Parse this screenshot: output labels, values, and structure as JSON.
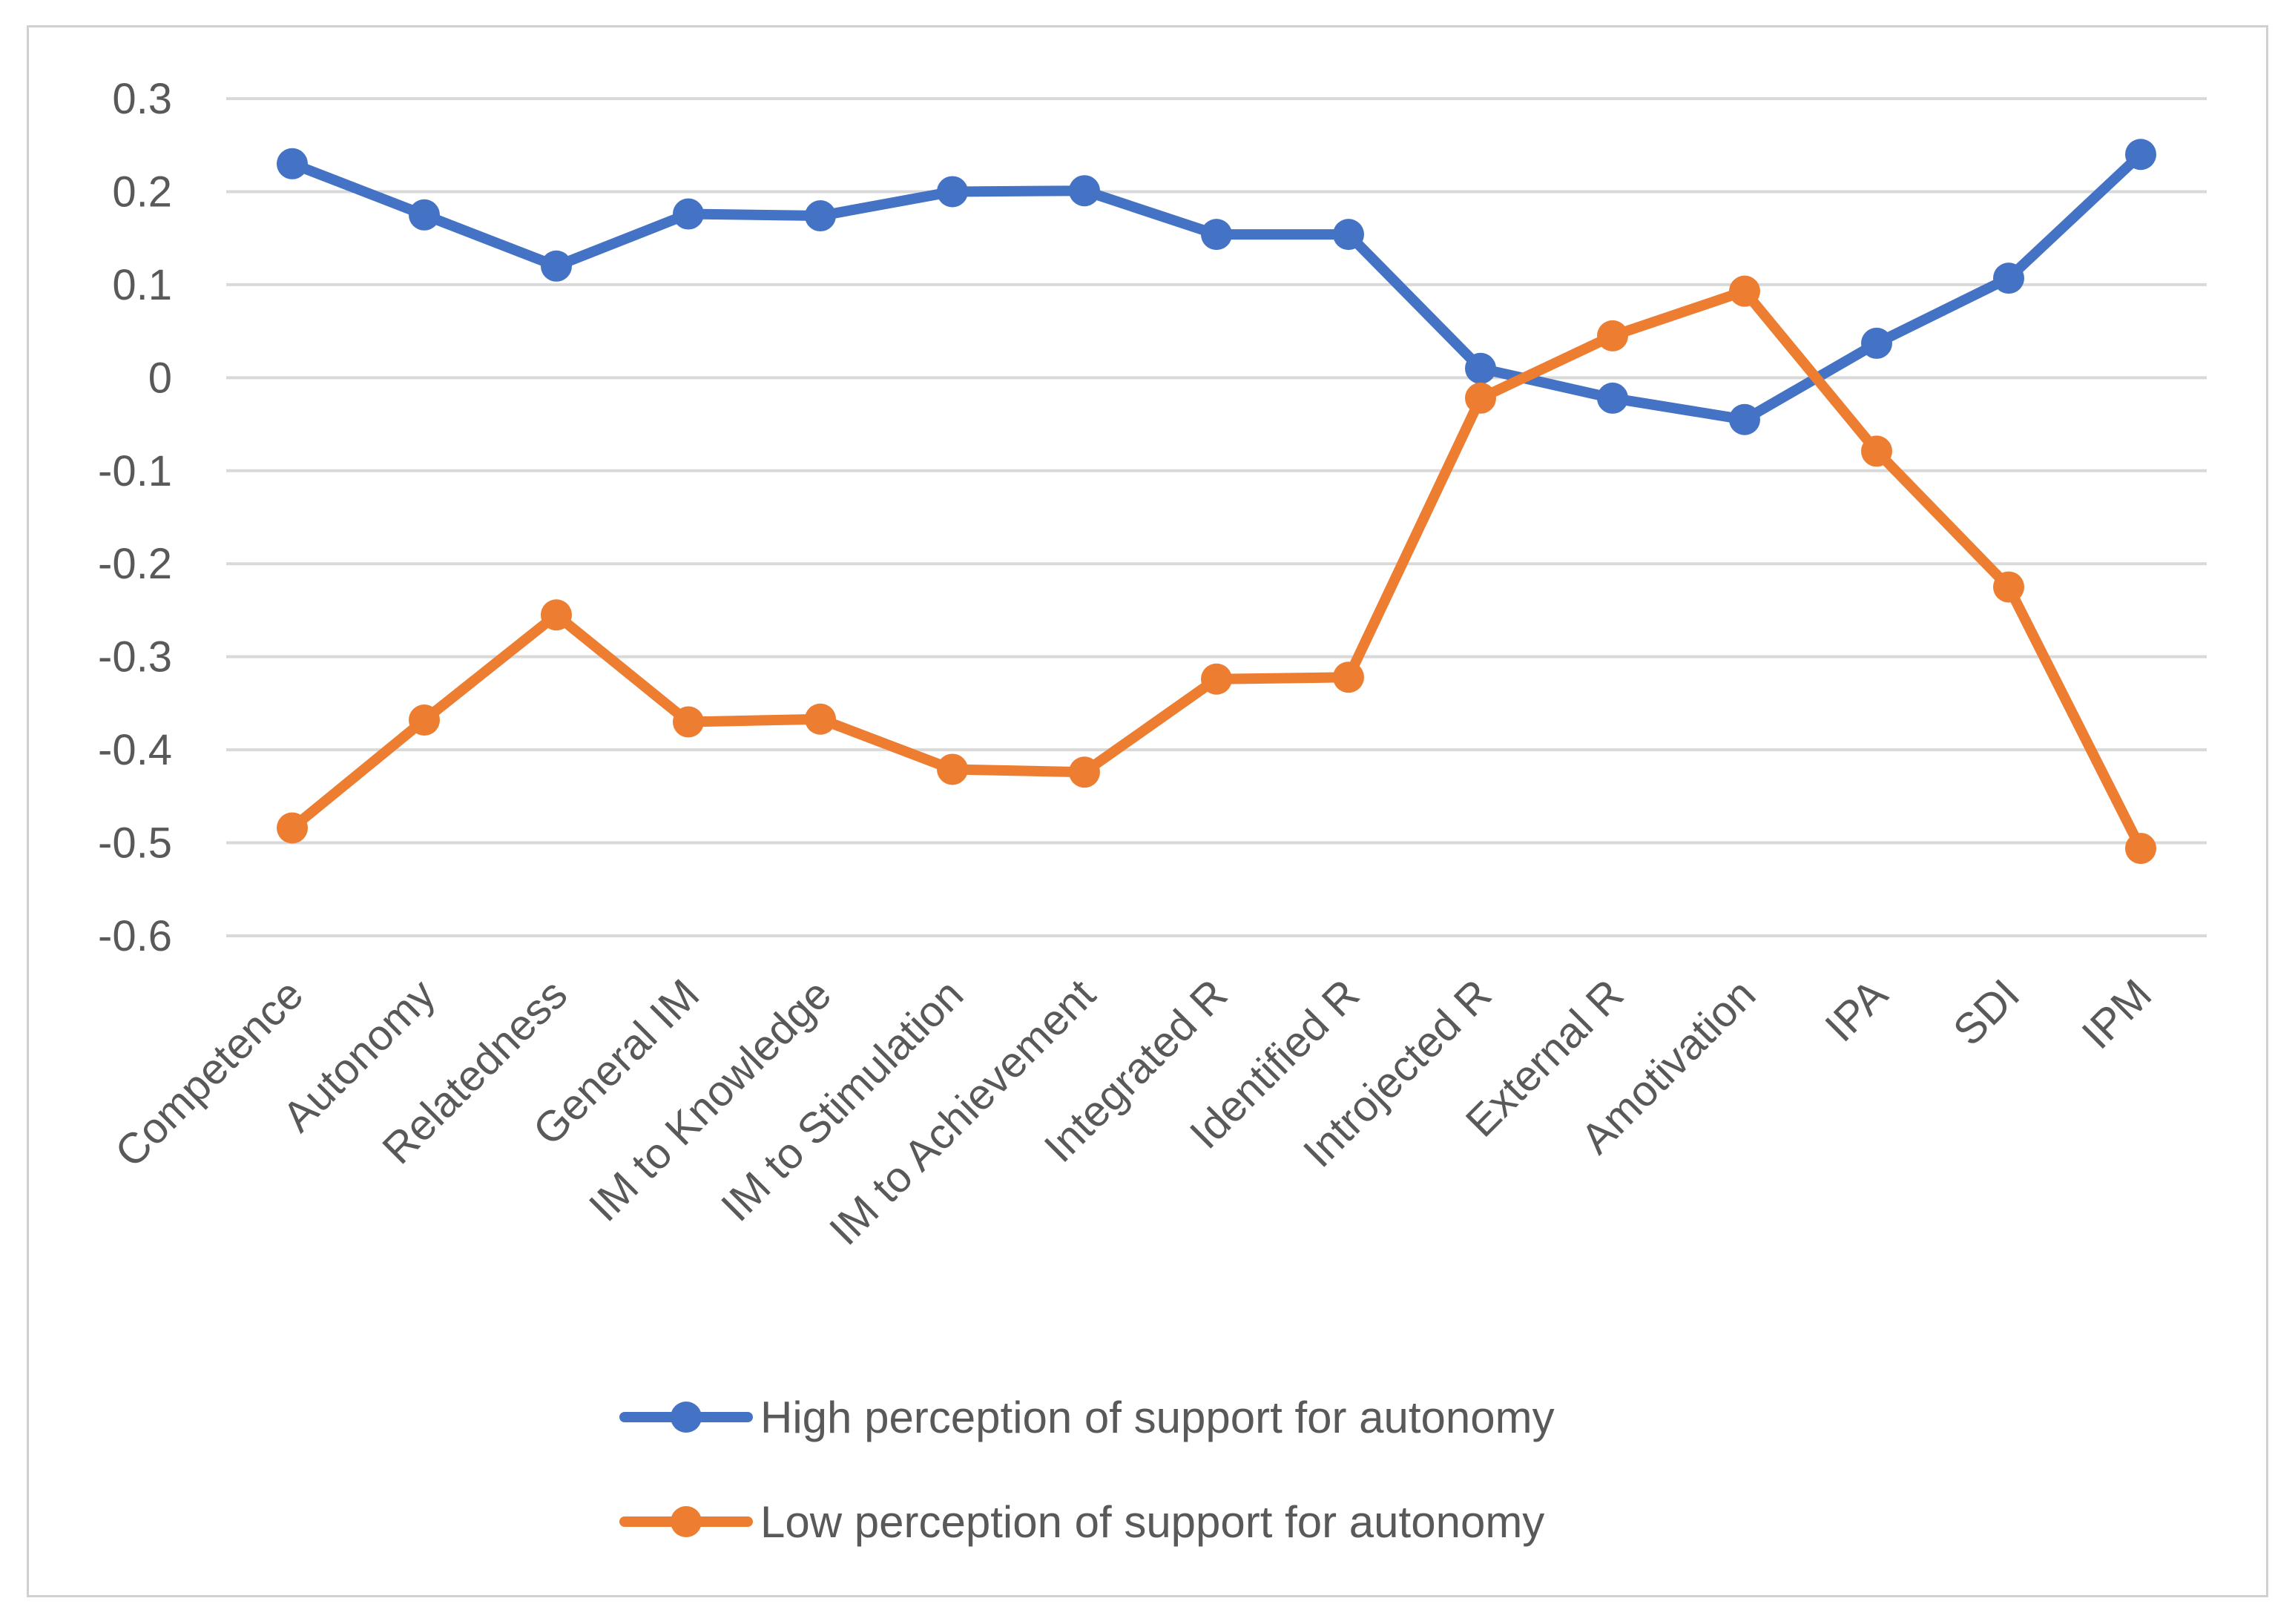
{
  "chart_data": {
    "type": "line",
    "title": "",
    "xlabel": "",
    "ylabel": "",
    "categories": [
      "Competence",
      "Autonomy",
      "Relatedness",
      "General IM",
      "IM to Knowledge",
      "IM to Stimulation",
      "IM to Achievement",
      "Integrated R",
      "Identified R",
      "Introjected R",
      "External R",
      "Amotivation",
      "IPA",
      "SDI",
      "IPM"
    ],
    "ylim": [
      -0.6,
      0.3
    ],
    "yticks": [
      0.3,
      0.2,
      0.1,
      0,
      -0.1,
      -0.2,
      -0.3,
      -0.4,
      -0.5,
      -0.6
    ],
    "ytick_labels": [
      "0.3",
      "0.2",
      "0.1",
      "0",
      "-0.1",
      "-0.2",
      "-0.3",
      "-0.4",
      "-0.5",
      "-0.6"
    ],
    "grid": true,
    "legend_position": "bottom",
    "series": [
      {
        "name": "High perception of support for autonomy",
        "color": "#4472c4",
        "values": [
          0.23,
          0.175,
          0.12,
          0.176,
          0.174,
          0.2,
          0.201,
          0.154,
          0.154,
          0.01,
          -0.022,
          -0.045,
          0.037,
          0.107,
          0.24
        ]
      },
      {
        "name": "Low perception of support for autonomy",
        "color": "#ed7d31",
        "values": [
          -0.484,
          -0.368,
          -0.255,
          -0.37,
          -0.367,
          -0.421,
          -0.424,
          -0.324,
          -0.322,
          -0.022,
          0.045,
          0.093,
          -0.079,
          -0.225,
          -0.506
        ]
      }
    ]
  }
}
